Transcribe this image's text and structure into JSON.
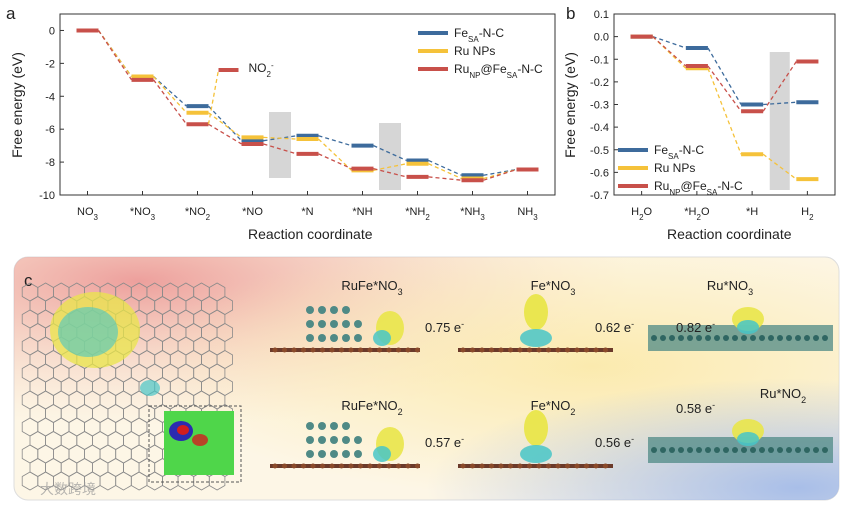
{
  "panel_labels": {
    "a": "a",
    "b": "b",
    "c": "c"
  },
  "chart_data": [
    {
      "type": "line",
      "panel": "a",
      "xlabel": "Reaction coordinate",
      "ylabel": "Free energy (eV)",
      "ylim": [
        -10,
        1
      ],
      "yticks": [
        0,
        -2,
        -4,
        -6,
        -8,
        -10
      ],
      "categories": [
        {
          "base": "NO",
          "sub": "3",
          "tail": ""
        },
        {
          "base": "*NO",
          "sub": "3",
          "tail": ""
        },
        {
          "base": "*NO",
          "sub": "2",
          "tail": ""
        },
        {
          "base": "*NO",
          "sub": "",
          "tail": ""
        },
        {
          "base": "*N",
          "sub": "",
          "tail": ""
        },
        {
          "base": "*NH",
          "sub": "",
          "tail": ""
        },
        {
          "base": "*NH",
          "sub": "2",
          "tail": ""
        },
        {
          "base": "*NH",
          "sub": "3",
          "tail": ""
        },
        {
          "base": "NH",
          "sub": "3",
          "tail": ""
        }
      ],
      "series": [
        {
          "name_base": "Fe",
          "name_sub": "SA",
          "name_tail": "-N-C",
          "color": "#3d6b9c",
          "values": [
            0,
            -2.8,
            -4.6,
            -6.7,
            -6.4,
            -7.0,
            -7.9,
            -8.8,
            -8.45
          ]
        },
        {
          "name_base": "Ru NPs",
          "name_sub": "",
          "name_tail": "",
          "color": "#f5c23a",
          "values": [
            0,
            -2.8,
            -5.0,
            -6.5,
            -6.6,
            -8.5,
            -8.1,
            -9.0,
            -8.45
          ]
        },
        {
          "name_base": "Ru",
          "name_sub": "NP",
          "name_tail": "@Fe",
          "name_sub2": "SA",
          "name_tail2": "-N-C",
          "color": "#c8504a",
          "values": [
            0,
            -3.0,
            -5.7,
            -6.9,
            -7.5,
            -8.4,
            -8.9,
            -9.1,
            -8.45
          ]
        }
      ],
      "annotation": {
        "text": "NO",
        "sub": "2",
        "sup": "-",
        "y": -2.4
      },
      "desorption_value": -2.4,
      "shaded_after_index": [
        3,
        5
      ]
    },
    {
      "type": "line",
      "panel": "b",
      "xlabel": "Reaction coordinate",
      "ylabel": "Free energy (eV)",
      "ylim": [
        -0.7,
        0.1
      ],
      "yticks": [
        0.1,
        0.0,
        -0.1,
        -0.2,
        -0.3,
        -0.4,
        -0.5,
        -0.6,
        -0.7
      ],
      "ytick_labels": [
        "0.1",
        "0.0",
        "-0.1",
        "-0.2",
        "-0.3",
        "-0.4",
        "-0.5",
        "-0.6",
        "-0.7"
      ],
      "categories": [
        {
          "base": "H",
          "sub": "2",
          "tail": "O"
        },
        {
          "base": "*H",
          "sub": "2",
          "tail": "O"
        },
        {
          "base": "*H",
          "sub": "",
          "tail": ""
        },
        {
          "base": "H",
          "sub": "2",
          "tail": ""
        }
      ],
      "series": [
        {
          "name_base": "Fe",
          "name_sub": "SA",
          "name_tail": "-N-C",
          "color": "#3d6b9c",
          "values": [
            0.0,
            -0.05,
            -0.3,
            -0.29
          ]
        },
        {
          "name_base": "Ru NPs",
          "name_sub": "",
          "name_tail": "",
          "color": "#f5c23a",
          "values": [
            0.0,
            -0.14,
            -0.52,
            -0.63
          ]
        },
        {
          "name_base": "Ru",
          "name_sub": "NP",
          "name_tail": "@Fe",
          "name_sub2": "SA",
          "name_tail2": "-N-C",
          "color": "#c8504a",
          "values": [
            0.0,
            -0.13,
            -0.33,
            -0.11
          ]
        }
      ],
      "shaded_after_index": [
        2
      ]
    }
  ],
  "panel_c": {
    "structures": [
      {
        "label": "RuFe*NO",
        "sub": "3",
        "charge": "0.75 e",
        "sup": "-"
      },
      {
        "label": "Fe*NO",
        "sub": "3",
        "charge": "0.62 e",
        "sup": "-"
      },
      {
        "label": "Ru*NO",
        "sub": "3",
        "charge": "0.82 e",
        "sup": "-"
      },
      {
        "label": "RuFe*NO",
        "sub": "2",
        "charge": "0.57 e",
        "sup": "-"
      },
      {
        "label": "Fe*NO",
        "sub": "2",
        "charge": "0.56 e",
        "sup": "-"
      },
      {
        "label": "Ru*NO",
        "sub": "2",
        "charge": "0.58 e",
        "sup": "-"
      }
    ],
    "colors": {
      "substrate": "#6b3a2a",
      "ru_atoms": "#4f8a86",
      "iso_yellow": "#e9e64a",
      "iso_cyan": "#48c6c7"
    }
  },
  "watermark": "大数跨境"
}
